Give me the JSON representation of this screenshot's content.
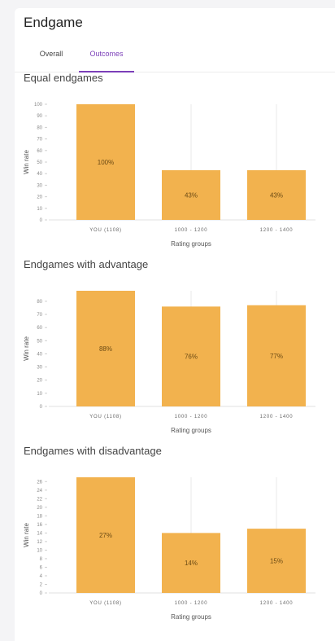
{
  "page": {
    "title": "Endgame"
  },
  "tabs": [
    {
      "label": "Overall",
      "active": false
    },
    {
      "label": "Outcomes",
      "active": true
    }
  ],
  "colors": {
    "bar": "#F2B24E",
    "accent": "#7B3FB8"
  },
  "chart_data": [
    {
      "type": "bar",
      "title": "Equal endgames",
      "xlabel": "Rating groups",
      "ylabel": "Win rate",
      "categories": [
        "YOU (1108)",
        "1000 - 1200",
        "1200 - 1400"
      ],
      "values": [
        100,
        43,
        43
      ],
      "value_labels": [
        "100%",
        "43%",
        "43%"
      ],
      "ylim": [
        0,
        100
      ],
      "yticks": [
        0,
        10,
        20,
        30,
        40,
        50,
        60,
        70,
        80,
        90,
        100
      ]
    },
    {
      "type": "bar",
      "title": "Endgames with advantage",
      "xlabel": "Rating groups",
      "ylabel": "Win rate",
      "categories": [
        "YOU (1108)",
        "1000 - 1200",
        "1200 - 1400"
      ],
      "values": [
        88,
        76,
        77
      ],
      "value_labels": [
        "88%",
        "76%",
        "77%"
      ],
      "ylim": [
        0,
        88
      ],
      "yticks": [
        0,
        10,
        20,
        30,
        40,
        50,
        60,
        70,
        80
      ]
    },
    {
      "type": "bar",
      "title": "Endgames with disadvantage",
      "xlabel": "Rating groups",
      "ylabel": "Win rate",
      "categories": [
        "YOU (1108)",
        "1000 - 1200",
        "1200 - 1400"
      ],
      "values": [
        27,
        14,
        15
      ],
      "value_labels": [
        "27%",
        "14%",
        "15%"
      ],
      "ylim": [
        0,
        27
      ],
      "yticks": [
        0,
        2,
        4,
        6,
        8,
        10,
        12,
        14,
        16,
        18,
        20,
        22,
        24,
        26
      ]
    }
  ]
}
